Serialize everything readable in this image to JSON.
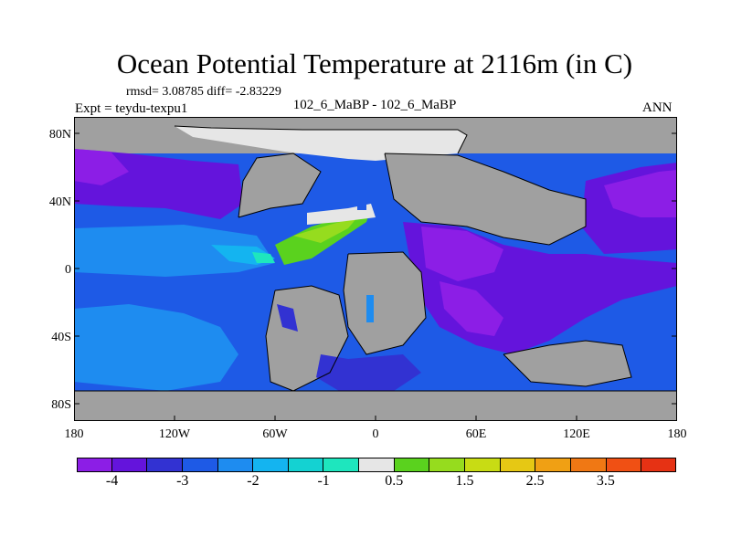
{
  "title": "Ocean Potential Temperature at 2116m (in C)",
  "stats": "rmsd= 3.08785 diff= -2.83229",
  "expt": "Expt = teydu-texpu1",
  "center_label": "102_6_MaBP - 102_6_MaBP",
  "season": "ANN",
  "lat_ticks": [
    "80N",
    "40N",
    "0",
    "40S",
    "80S"
  ],
  "lon_ticks": [
    "180",
    "120W",
    "60W",
    "0",
    "60E",
    "120E",
    "180"
  ],
  "colorbar": {
    "colors": [
      "#8c1ee6",
      "#6414dc",
      "#3232d2",
      "#1e5ae6",
      "#1e8cf0",
      "#14b4f0",
      "#14d2d2",
      "#1ee6be",
      "#e6e6e6",
      "#5ad21e",
      "#96dc1e",
      "#c8dc14",
      "#e6c814",
      "#f0a014",
      "#f07814",
      "#f05014",
      "#e63214"
    ],
    "labels": [
      "-4",
      "-3",
      "-2",
      "-1",
      "0.5",
      "1.5",
      "2.5",
      "3.5"
    ]
  },
  "chart_data": {
    "type": "heatmap",
    "title": "Ocean Potential Temperature at 2116m (in C)",
    "subtitle": "rmsd= 3.08785 diff= -2.83229",
    "left_string": "Expt = teydu-texpu1",
    "center_string": "102_6_MaBP - 102_6_MaBP",
    "right_string": "ANN",
    "x_range": [
      -180,
      180
    ],
    "y_range": [
      -90,
      90
    ],
    "x_ticks": [
      "180",
      "120W",
      "60W",
      "0",
      "60E",
      "120E",
      "180"
    ],
    "y_ticks": [
      "80N",
      "40N",
      "0",
      "40S",
      "80S"
    ],
    "colorbar_levels": [
      "-4",
      "-3",
      "-2",
      "-1",
      "0.5",
      "1.5",
      "2.5",
      "3.5"
    ],
    "land_color": "#a0a0a0",
    "colors": {
      "land": "#a0a0a0",
      "ice": "#e6e6e6"
    }
  }
}
